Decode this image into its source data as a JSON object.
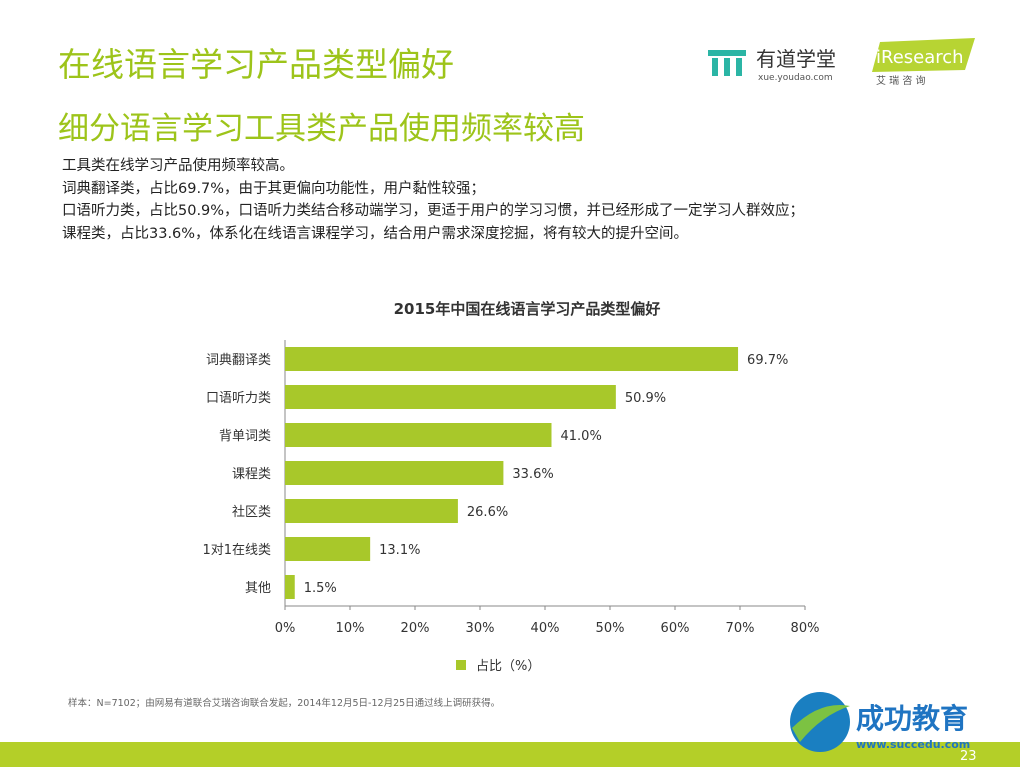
{
  "header": {
    "title": "在线语言学习产品类型偏好",
    "subtitle": "细分语言学习工具类产品使用频率较高"
  },
  "logos": {
    "youdao": "有道学堂",
    "youdao_url": "xue.youdao.com",
    "iresearch": "iResearch",
    "iresearch_cn": "艾 瑞 咨 询",
    "succedu": "成功教育",
    "succedu_url": "www.succedu.com"
  },
  "description": {
    "lines": [
      "工具类在线学习产品使用频率较高。",
      "词典翻译类，占比69.7%，由于其更偏向功能性，用户黏性较强；",
      "口语听力类，占比50.9%，口语听力类结合移动端学习，更适于用户的学习习惯，并已经形成了一定学习人群效应；",
      "课程类，占比33.6%，体系化在线语言课程学习，结合用户需求深度挖掘，将有较大的提升空间。"
    ]
  },
  "chart_data": {
    "type": "bar",
    "orientation": "horizontal",
    "title": "2015年中国在线语言学习产品类型偏好",
    "categories": [
      "词典翻译类",
      "口语听力类",
      "背单词类",
      "课程类",
      "社区类",
      "1对1在线类",
      "其他"
    ],
    "series": [
      {
        "name": "占比（%）",
        "color": "#a8c82a",
        "values": [
          69.7,
          50.9,
          41.0,
          33.6,
          26.6,
          13.1,
          1.5
        ],
        "value_labels": [
          "69.7%",
          "50.9%",
          "41.0%",
          "33.6%",
          "26.6%",
          "13.1%",
          "1.5%"
        ]
      }
    ],
    "xlim": [
      0,
      80
    ],
    "xticks": [
      {
        "value": 0,
        "label": "0%"
      },
      {
        "value": 10,
        "label": "10%"
      },
      {
        "value": 20,
        "label": "20%"
      },
      {
        "value": 30,
        "label": "30%"
      },
      {
        "value": 40,
        "label": "40%"
      },
      {
        "value": 50,
        "label": "50%"
      },
      {
        "value": 60,
        "label": "60%"
      },
      {
        "value": 70,
        "label": "70%"
      },
      {
        "value": 80,
        "label": "80%"
      }
    ],
    "legend": "bottom"
  },
  "footnote": "样本：N=7102；由网易有道联合艾瑞咨询联合发起，2014年12月5日-12月25日通过线上调研获得。",
  "page_number": "23"
}
